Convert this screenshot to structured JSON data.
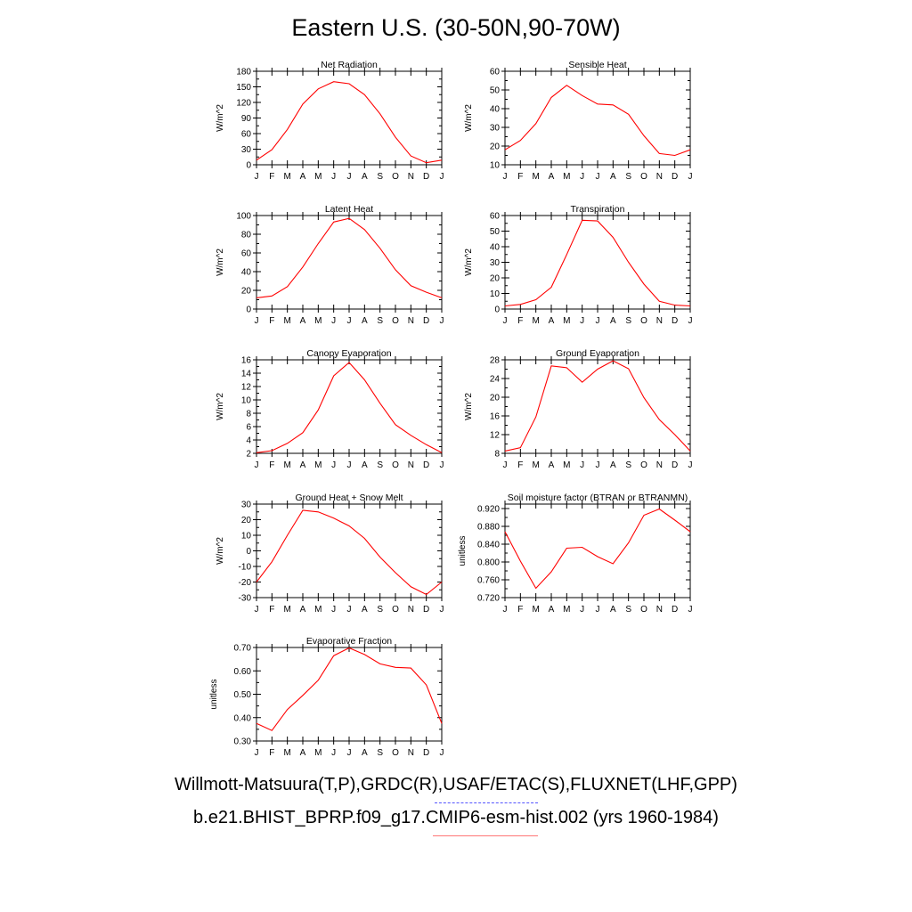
{
  "title": "Eastern U.S. (30-50N,90-70W)",
  "legend": {
    "observations": "Willmott-Matsuura(T,P),GRDC(R),USAF/ETAC(S),FLUXNET(LHF,GPP)",
    "model": "b.e21.BHIST_BPRP.f09_g17.CMIP6-esm-hist.002 (yrs 1960-1984)",
    "observations_color": "#5555ff",
    "model_color": "#ff0000"
  },
  "chart_data": [
    {
      "type": "line",
      "title": "Net Radiation",
      "ylabel": "W/m^2",
      "x": [
        "J",
        "F",
        "M",
        "A",
        "M",
        "J",
        "J",
        "A",
        "S",
        "O",
        "N",
        "D",
        "J"
      ],
      "ylim": [
        0,
        180
      ],
      "yticks": [
        0,
        30,
        60,
        90,
        120,
        150,
        180
      ],
      "ytick_labels": [
        "0",
        "30",
        "60",
        "90",
        "120",
        "150",
        "180"
      ],
      "series": [
        {
          "values": [
            9,
            29,
            68,
            117,
            146,
            160,
            156,
            135,
            98,
            53,
            17,
            4,
            9
          ]
        }
      ]
    },
    {
      "type": "line",
      "title": "Sensible Heat",
      "ylabel": "W/m^2",
      "x": [
        "J",
        "F",
        "M",
        "A",
        "M",
        "J",
        "J",
        "A",
        "S",
        "O",
        "N",
        "D",
        "J"
      ],
      "ylim": [
        10,
        60
      ],
      "yticks": [
        10,
        20,
        30,
        40,
        50,
        60
      ],
      "ytick_labels": [
        "10",
        "20",
        "30",
        "40",
        "50",
        "60"
      ],
      "series": [
        {
          "values": [
            18,
            23,
            32,
            46,
            52.5,
            47,
            42.5,
            42,
            37,
            25.5,
            16,
            15,
            18
          ]
        }
      ]
    },
    {
      "type": "line",
      "title": "Latent Heat",
      "ylabel": "W/m^2",
      "x": [
        "J",
        "F",
        "M",
        "A",
        "M",
        "J",
        "J",
        "A",
        "S",
        "O",
        "N",
        "D",
        "J"
      ],
      "ylim": [
        0,
        100
      ],
      "yticks": [
        0,
        20,
        40,
        60,
        80,
        100
      ],
      "ytick_labels": [
        "0",
        "20",
        "40",
        "60",
        "80",
        "100"
      ],
      "series": [
        {
          "values": [
            12,
            14,
            24,
            45,
            70,
            93,
            97,
            85,
            65,
            42,
            25,
            18,
            12
          ]
        }
      ]
    },
    {
      "type": "line",
      "title": "Transpiration",
      "ylabel": "W/m^2",
      "x": [
        "J",
        "F",
        "M",
        "A",
        "M",
        "J",
        "J",
        "A",
        "S",
        "O",
        "N",
        "D",
        "J"
      ],
      "ylim": [
        0,
        60
      ],
      "yticks": [
        0,
        10,
        20,
        30,
        40,
        50,
        60
      ],
      "ytick_labels": [
        "0",
        "10",
        "20",
        "30",
        "40",
        "50",
        "60"
      ],
      "series": [
        {
          "values": [
            2,
            3,
            6,
            14,
            35,
            57,
            56.5,
            46,
            30,
            16,
            5,
            2.5,
            2
          ]
        }
      ]
    },
    {
      "type": "line",
      "title": "Canopy Evaporation",
      "ylabel": "W/m^2",
      "x": [
        "J",
        "F",
        "M",
        "A",
        "M",
        "J",
        "J",
        "A",
        "S",
        "O",
        "N",
        "D",
        "J"
      ],
      "ylim": [
        2,
        16
      ],
      "yticks": [
        2,
        4,
        6,
        8,
        10,
        12,
        14,
        16
      ],
      "ytick_labels": [
        "2",
        "4",
        "6",
        "8",
        "10",
        "12",
        "14",
        "16"
      ],
      "series": [
        {
          "values": [
            2.1,
            2.4,
            3.5,
            5.1,
            8.5,
            13.6,
            15.6,
            13,
            9.5,
            6.3,
            4.7,
            3.3,
            2.1
          ]
        }
      ]
    },
    {
      "type": "line",
      "title": "Ground Evaporation",
      "ylabel": "W/m^2",
      "x": [
        "J",
        "F",
        "M",
        "A",
        "M",
        "J",
        "J",
        "A",
        "S",
        "O",
        "N",
        "D",
        "J"
      ],
      "ylim": [
        8,
        28
      ],
      "yticks": [
        8,
        12,
        16,
        20,
        24,
        28
      ],
      "ytick_labels": [
        "8",
        "12",
        "16",
        "20",
        "24",
        "28"
      ],
      "series": [
        {
          "values": [
            8.5,
            9.2,
            15.8,
            26.7,
            26.3,
            23.2,
            26,
            27.8,
            26.1,
            19.9,
            15.2,
            12,
            8.5
          ]
        }
      ]
    },
    {
      "type": "line",
      "title": "Ground Heat + Snow Melt",
      "ylabel": "W/m^2",
      "x": [
        "J",
        "F",
        "M",
        "A",
        "M",
        "J",
        "J",
        "A",
        "S",
        "O",
        "N",
        "D",
        "J"
      ],
      "ylim": [
        -30,
        30
      ],
      "yticks": [
        -30,
        -20,
        -10,
        0,
        10,
        20,
        30
      ],
      "ytick_labels": [
        "-30",
        "-20",
        "-10",
        "0",
        "10",
        "20",
        "30"
      ],
      "series": [
        {
          "values": [
            -20,
            -7,
            10,
            26,
            25,
            21,
            16,
            8,
            -4,
            -14,
            -23,
            -28,
            -20
          ]
        }
      ]
    },
    {
      "type": "line",
      "title": "Soil moisture factor (BTRAN or BTRANMN)",
      "ylabel": "unitless",
      "x": [
        "J",
        "F",
        "M",
        "A",
        "M",
        "J",
        "J",
        "A",
        "S",
        "O",
        "N",
        "D",
        "J"
      ],
      "ylim": [
        0.72,
        0.93
      ],
      "yticks": [
        0.72,
        0.76,
        0.8,
        0.84,
        0.88,
        0.92
      ],
      "ytick_labels": [
        "0.720",
        "0.760",
        "0.800",
        "0.840",
        "0.880",
        "0.920"
      ],
      "series": [
        {
          "values": [
            0.868,
            0.802,
            0.741,
            0.778,
            0.831,
            0.833,
            0.812,
            0.796,
            0.843,
            0.905,
            0.919,
            0.894,
            0.868
          ]
        }
      ]
    },
    {
      "type": "line",
      "title": "Evaporative Fraction",
      "ylabel": "unitless",
      "x": [
        "J",
        "F",
        "M",
        "A",
        "M",
        "J",
        "J",
        "A",
        "S",
        "O",
        "N",
        "D",
        "J"
      ],
      "ylim": [
        0.3,
        0.7
      ],
      "yticks": [
        0.3,
        0.4,
        0.5,
        0.6,
        0.7
      ],
      "ytick_labels": [
        "0.30",
        "0.40",
        "0.50",
        "0.60",
        "0.70"
      ],
      "series": [
        {
          "values": [
            0.375,
            0.345,
            0.435,
            0.495,
            0.56,
            0.665,
            0.698,
            0.67,
            0.63,
            0.615,
            0.612,
            0.54,
            0.375
          ]
        }
      ]
    }
  ]
}
